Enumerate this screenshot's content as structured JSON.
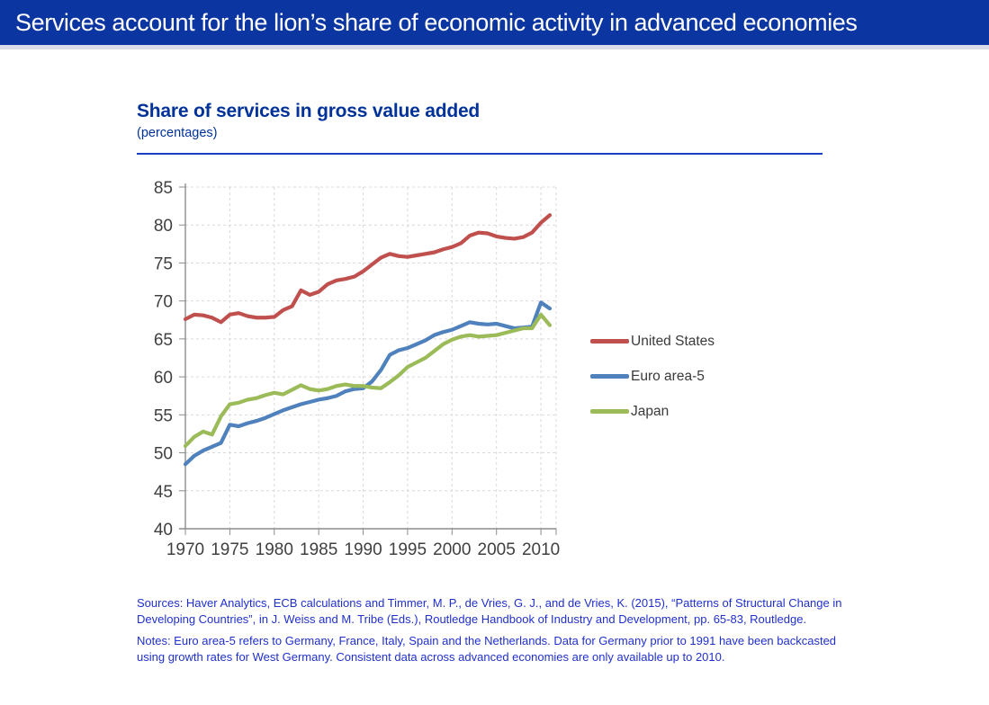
{
  "banner": {
    "title": "Services account for the lion’s share of economic activity in advanced economies",
    "bg_color": "#0B35A0",
    "text_color": "#FFFFFF"
  },
  "chart": {
    "title": "Share of services in gross value added",
    "subtitle": "(percentages)",
    "accent_color": "#003299"
  },
  "chart_data": {
    "type": "line",
    "title": "Share of services in gross value added",
    "subtitle": "(percentages)",
    "x": [
      1970,
      1971,
      1972,
      1973,
      1974,
      1975,
      1976,
      1977,
      1978,
      1979,
      1980,
      1981,
      1982,
      1983,
      1984,
      1985,
      1986,
      1987,
      1988,
      1989,
      1990,
      1991,
      1992,
      1993,
      1994,
      1995,
      1996,
      1997,
      1998,
      1999,
      2000,
      2001,
      2002,
      2003,
      2004,
      2005,
      2006,
      2007,
      2008,
      2009,
      2010,
      2011
    ],
    "series": [
      {
        "name": "United States",
        "color": "#C0504D",
        "values": [
          67.6,
          68.2,
          68.1,
          67.8,
          67.2,
          68.2,
          68.4,
          68.0,
          67.8,
          67.8,
          67.9,
          68.8,
          69.3,
          71.4,
          70.8,
          71.2,
          72.2,
          72.7,
          72.9,
          73.2,
          73.9,
          74.8,
          75.7,
          76.2,
          75.9,
          75.8,
          76.0,
          76.2,
          76.4,
          76.8,
          77.1,
          77.6,
          78.6,
          79.0,
          78.9,
          78.5,
          78.3,
          78.2,
          78.4,
          79.0,
          80.3,
          81.3
        ]
      },
      {
        "name": "Euro area-5",
        "color": "#4F81BD",
        "values": [
          48.5,
          49.6,
          50.3,
          50.8,
          51.3,
          53.7,
          53.5,
          53.9,
          54.2,
          54.6,
          55.1,
          55.6,
          56.0,
          56.4,
          56.7,
          57.0,
          57.2,
          57.5,
          58.1,
          58.4,
          58.5,
          59.4,
          60.9,
          62.9,
          63.5,
          63.8,
          64.3,
          64.8,
          65.5,
          65.9,
          66.2,
          66.7,
          67.2,
          67.0,
          66.9,
          67.0,
          66.7,
          66.4,
          66.5,
          66.6,
          69.8,
          69.0
        ]
      },
      {
        "name": "Japan",
        "color": "#9BBB59",
        "values": [
          50.9,
          52.1,
          52.8,
          52.4,
          54.8,
          56.4,
          56.6,
          57.0,
          57.2,
          57.6,
          57.9,
          57.7,
          58.3,
          58.9,
          58.4,
          58.2,
          58.4,
          58.8,
          59.0,
          58.8,
          58.8,
          58.6,
          58.5,
          59.3,
          60.2,
          61.3,
          61.9,
          62.5,
          63.4,
          64.3,
          64.9,
          65.3,
          65.5,
          65.3,
          65.4,
          65.5,
          65.8,
          66.1,
          66.4,
          66.4,
          68.2,
          66.8
        ]
      }
    ],
    "x_axis": {
      "ticks": [
        1970,
        1975,
        1980,
        1985,
        1990,
        1995,
        2000,
        2005,
        2010
      ]
    },
    "y_axis": {
      "ticks": [
        40,
        45,
        50,
        55,
        60,
        65,
        70,
        75,
        80,
        85
      ],
      "range": [
        40,
        85
      ]
    },
    "grid": "dashed",
    "legend_position": "right"
  },
  "footnotes": {
    "sources": "Sources: Haver Analytics, ECB calculations and Timmer, M. P., de Vries, G. J., and de Vries, K. (2015), “Patterns of Structural Change in Developing Countries”, in J. Weiss and M. Tribe (Eds.), Routledge Handbook of Industry and Development, pp. 65-83, Routledge.",
    "notes": "Notes: Euro area-5 refers to Germany, France, Italy, Spain and the Netherlands. Data for Germany prior to 1991 have been backcasted using growth rates for West Germany. Consistent data across advanced economies are only available up to 2010."
  }
}
